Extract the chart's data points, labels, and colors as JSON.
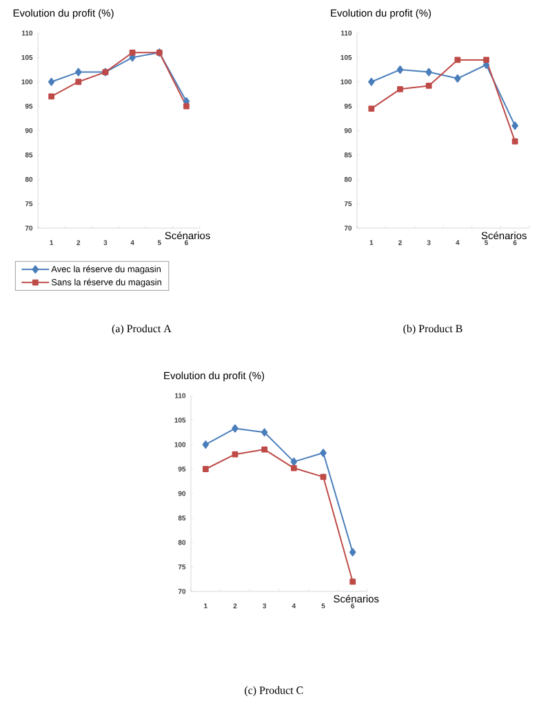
{
  "chart_data": [
    {
      "type": "line",
      "title": "Evolution du profit (%)",
      "xlabel": "Scénarios",
      "categories": [
        "1",
        "2",
        "3",
        "4",
        "5",
        "6"
      ],
      "ylim": [
        70,
        110
      ],
      "yticks": [
        70,
        75,
        80,
        85,
        90,
        95,
        100,
        105,
        110
      ],
      "legend": "bottom",
      "line_style": "solid",
      "series": [
        {
          "name": "Avec la réserve du magasin",
          "color": "#4a7ebb",
          "marker": "diamond",
          "values": [
            100,
            102,
            102,
            105,
            106,
            96
          ]
        },
        {
          "name": "Sans la réserve du magasin",
          "color": "#be4b48",
          "marker": "square",
          "values": [
            97,
            100,
            102,
            106,
            106,
            95
          ]
        }
      ],
      "annotations": [
        "(a) Product A"
      ]
    },
    {
      "type": "line",
      "title": "Evolution du profit (%)",
      "xlabel": "Scénarios",
      "categories": [
        "1",
        "2",
        "3",
        "4",
        "5",
        "6"
      ],
      "ylim": [
        70,
        110
      ],
      "yticks": [
        70,
        75,
        80,
        85,
        90,
        95,
        100,
        105,
        110
      ],
      "line_style": "solid",
      "series": [
        {
          "color": "#4a7ebb",
          "marker": "diamond",
          "values": [
            100,
            102.5,
            102,
            100.7,
            103.5,
            91
          ]
        },
        {
          "color": "#be4b48",
          "marker": "square",
          "values": [
            94.5,
            98.5,
            99.2,
            104.5,
            104.5,
            87.8
          ]
        }
      ],
      "annotations": [
        "(b) Product B"
      ]
    },
    {
      "type": "line",
      "title": "Evolution du profit (%)",
      "xlabel": "Scénarios",
      "categories": [
        "1",
        "2",
        "3",
        "4",
        "5",
        "6"
      ],
      "ylim": [
        70,
        110
      ],
      "yticks": [
        70,
        75,
        80,
        85,
        90,
        95,
        100,
        105,
        110
      ],
      "line_style": "solid",
      "series": [
        {
          "color": "#4a7ebb",
          "marker": "diamond",
          "values": [
            100,
            103.3,
            102.5,
            96.5,
            98.3,
            78
          ]
        },
        {
          "color": "#be4b48",
          "marker": "square",
          "values": [
            95,
            98,
            99,
            95.2,
            93.4,
            72
          ]
        }
      ],
      "annotations": [
        "(c) Product C"
      ]
    }
  ]
}
